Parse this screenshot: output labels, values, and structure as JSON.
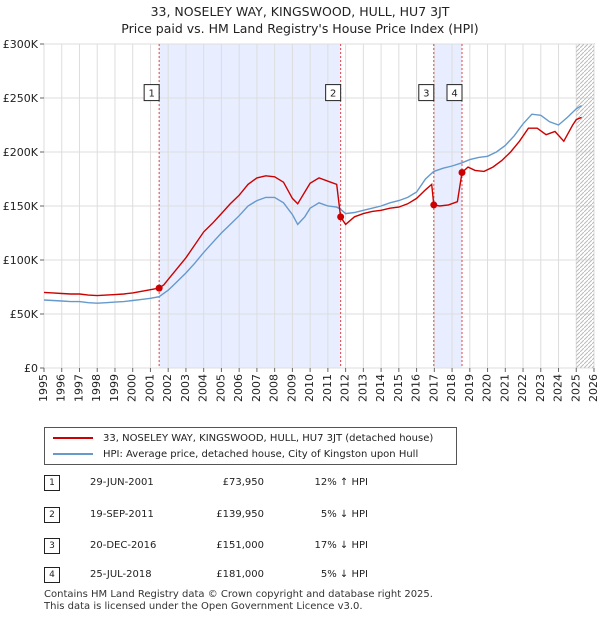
{
  "chart_data": {
    "type": "line",
    "title": "33, NOSELEY WAY, KINGSWOOD, HULL, HU7 3JT",
    "subtitle": "Price paid vs. HM Land Registry's House Price Index (HPI)",
    "xlabel": "",
    "ylabel": "",
    "xlim": [
      1995,
      2026
    ],
    "ylim": [
      0,
      300000
    ],
    "x_ticks": [
      "1995",
      "1996",
      "1997",
      "1998",
      "1999",
      "2000",
      "2001",
      "2002",
      "2003",
      "2004",
      "2005",
      "2006",
      "2007",
      "2008",
      "2009",
      "2010",
      "2011",
      "2012",
      "2013",
      "2014",
      "2015",
      "2016",
      "2017",
      "2018",
      "2019",
      "2020",
      "2021",
      "2022",
      "2023",
      "2024",
      "2025",
      "2026"
    ],
    "y_ticks": [
      {
        "value": 0,
        "label": "£0"
      },
      {
        "value": 50000,
        "label": "£50K"
      },
      {
        "value": 100000,
        "label": "£100K"
      },
      {
        "value": 150000,
        "label": "£150K"
      },
      {
        "value": 200000,
        "label": "£200K"
      },
      {
        "value": 250000,
        "label": "£250K"
      },
      {
        "value": 300000,
        "label": "£300K"
      }
    ],
    "grid": true,
    "forecast_start": 2025.0,
    "series": [
      {
        "name": "33, NOSELEY WAY, KINGSWOOD, HULL, HU7 3JT (detached house)",
        "color": "#cc0000",
        "points": [
          [
            1995.0,
            70000
          ],
          [
            1995.5,
            69500
          ],
          [
            1996.0,
            69000
          ],
          [
            1996.5,
            68500
          ],
          [
            1997.0,
            68500
          ],
          [
            1997.5,
            67500
          ],
          [
            1998.0,
            67000
          ],
          [
            1998.5,
            67500
          ],
          [
            1999.0,
            68000
          ],
          [
            1999.5,
            68500
          ],
          [
            2000.0,
            69500
          ],
          [
            2000.5,
            71000
          ],
          [
            2001.0,
            72500
          ],
          [
            2001.49,
            73950
          ],
          [
            2001.75,
            77000
          ],
          [
            2002.0,
            82000
          ],
          [
            2002.5,
            92000
          ],
          [
            2003.0,
            102000
          ],
          [
            2003.5,
            114000
          ],
          [
            2004.0,
            126000
          ],
          [
            2004.5,
            134000
          ],
          [
            2005.0,
            143000
          ],
          [
            2005.5,
            152000
          ],
          [
            2006.0,
            160000
          ],
          [
            2006.5,
            170000
          ],
          [
            2007.0,
            176000
          ],
          [
            2007.5,
            178000
          ],
          [
            2008.0,
            177000
          ],
          [
            2008.5,
            172000
          ],
          [
            2009.0,
            157000
          ],
          [
            2009.3,
            152000
          ],
          [
            2009.7,
            163000
          ],
          [
            2010.0,
            171000
          ],
          [
            2010.5,
            176000
          ],
          [
            2011.0,
            173000
          ],
          [
            2011.5,
            170000
          ],
          [
            2011.72,
            139950
          ],
          [
            2012.0,
            133000
          ],
          [
            2012.5,
            140000
          ],
          [
            2013.0,
            143000
          ],
          [
            2013.5,
            145000
          ],
          [
            2014.0,
            146000
          ],
          [
            2014.5,
            148000
          ],
          [
            2015.0,
            149000
          ],
          [
            2015.5,
            152000
          ],
          [
            2016.0,
            157000
          ],
          [
            2016.5,
            165000
          ],
          [
            2016.85,
            170000
          ],
          [
            2016.97,
            151000
          ],
          [
            2017.3,
            150000
          ],
          [
            2017.8,
            151000
          ],
          [
            2018.3,
            154000
          ],
          [
            2018.56,
            181000
          ],
          [
            2018.9,
            186000
          ],
          [
            2019.3,
            183000
          ],
          [
            2019.8,
            182000
          ],
          [
            2020.3,
            186000
          ],
          [
            2020.8,
            192000
          ],
          [
            2021.3,
            200000
          ],
          [
            2021.8,
            210000
          ],
          [
            2022.3,
            222000
          ],
          [
            2022.8,
            222000
          ],
          [
            2023.3,
            216000
          ],
          [
            2023.8,
            219000
          ],
          [
            2024.3,
            210000
          ],
          [
            2024.8,
            225000
          ],
          [
            2025.0,
            230000
          ],
          [
            2025.3,
            232000
          ]
        ]
      },
      {
        "name": "HPI: Average price, detached house, City of Kingston upon Hull",
        "color": "#6699cc",
        "points": [
          [
            1995.0,
            63000
          ],
          [
            1995.5,
            62500
          ],
          [
            1996.0,
            62000
          ],
          [
            1996.5,
            61500
          ],
          [
            1997.0,
            61500
          ],
          [
            1997.5,
            60500
          ],
          [
            1998.0,
            60000
          ],
          [
            1998.5,
            60500
          ],
          [
            1999.0,
            61000
          ],
          [
            1999.5,
            61500
          ],
          [
            2000.0,
            62500
          ],
          [
            2000.5,
            63500
          ],
          [
            2001.0,
            64500
          ],
          [
            2001.49,
            66000
          ],
          [
            2002.0,
            72000
          ],
          [
            2002.5,
            80000
          ],
          [
            2003.0,
            88000
          ],
          [
            2003.5,
            97000
          ],
          [
            2004.0,
            107000
          ],
          [
            2004.5,
            116000
          ],
          [
            2005.0,
            125000
          ],
          [
            2005.5,
            133000
          ],
          [
            2006.0,
            141000
          ],
          [
            2006.5,
            150000
          ],
          [
            2007.0,
            155000
          ],
          [
            2007.5,
            158000
          ],
          [
            2008.0,
            158000
          ],
          [
            2008.5,
            153000
          ],
          [
            2009.0,
            142000
          ],
          [
            2009.3,
            133000
          ],
          [
            2009.7,
            140000
          ],
          [
            2010.0,
            148000
          ],
          [
            2010.5,
            153000
          ],
          [
            2011.0,
            150000
          ],
          [
            2011.5,
            149000
          ],
          [
            2011.72,
            147000
          ],
          [
            2012.0,
            143000
          ],
          [
            2012.5,
            144000
          ],
          [
            2013.0,
            146000
          ],
          [
            2013.5,
            148000
          ],
          [
            2014.0,
            150000
          ],
          [
            2014.5,
            153000
          ],
          [
            2015.0,
            155000
          ],
          [
            2015.5,
            158000
          ],
          [
            2016.0,
            163000
          ],
          [
            2016.5,
            175000
          ],
          [
            2016.97,
            182000
          ],
          [
            2017.5,
            185000
          ],
          [
            2018.0,
            187000
          ],
          [
            2018.56,
            190000
          ],
          [
            2019.0,
            193000
          ],
          [
            2019.5,
            195000
          ],
          [
            2020.0,
            196000
          ],
          [
            2020.5,
            200000
          ],
          [
            2021.0,
            206000
          ],
          [
            2021.5,
            215000
          ],
          [
            2022.0,
            226000
          ],
          [
            2022.5,
            235000
          ],
          [
            2023.0,
            234000
          ],
          [
            2023.5,
            228000
          ],
          [
            2024.0,
            225000
          ],
          [
            2024.5,
            232000
          ],
          [
            2025.0,
            240000
          ],
          [
            2025.3,
            243000
          ]
        ]
      }
    ],
    "transactions": [
      {
        "id": "1",
        "x": 2001.49,
        "price": 73950,
        "date": "29-JUN-2001",
        "price_label": "£73,950",
        "hpi": "12% ↑ HPI"
      },
      {
        "id": "2",
        "x": 2011.72,
        "price": 139950,
        "date": "19-SEP-2011",
        "price_label": "£139,950",
        "hpi": "5% ↓ HPI"
      },
      {
        "id": "3",
        "x": 2016.97,
        "price": 151000,
        "date": "20-DEC-2016",
        "price_label": "£151,000",
        "hpi": "17% ↓ HPI"
      },
      {
        "id": "4",
        "x": 2018.56,
        "price": 181000,
        "date": "25-JUL-2018",
        "price_label": "£181,000",
        "hpi": "5% ↓ HPI"
      }
    ],
    "shaded_ranges": [
      [
        2001.49,
        2011.72
      ],
      [
        2016.97,
        2018.56
      ]
    ],
    "marker_box_value": 255000
  },
  "legend": {
    "property_label": "33, NOSELEY WAY, KINGSWOOD, HULL, HU7 3JT (detached house)",
    "hpi_label": "HPI: Average price, detached house, City of Kingston upon Hull"
  },
  "footer": {
    "line1": "Contains HM Land Registry data © Crown copyright and database right 2025.",
    "line2": "This data is licensed under the Open Government Licence v3.0."
  },
  "colors": {
    "property_line": "#cc0000",
    "hpi_line": "#6699cc",
    "shade": "#e8eeff",
    "grid": "#dddddd"
  }
}
